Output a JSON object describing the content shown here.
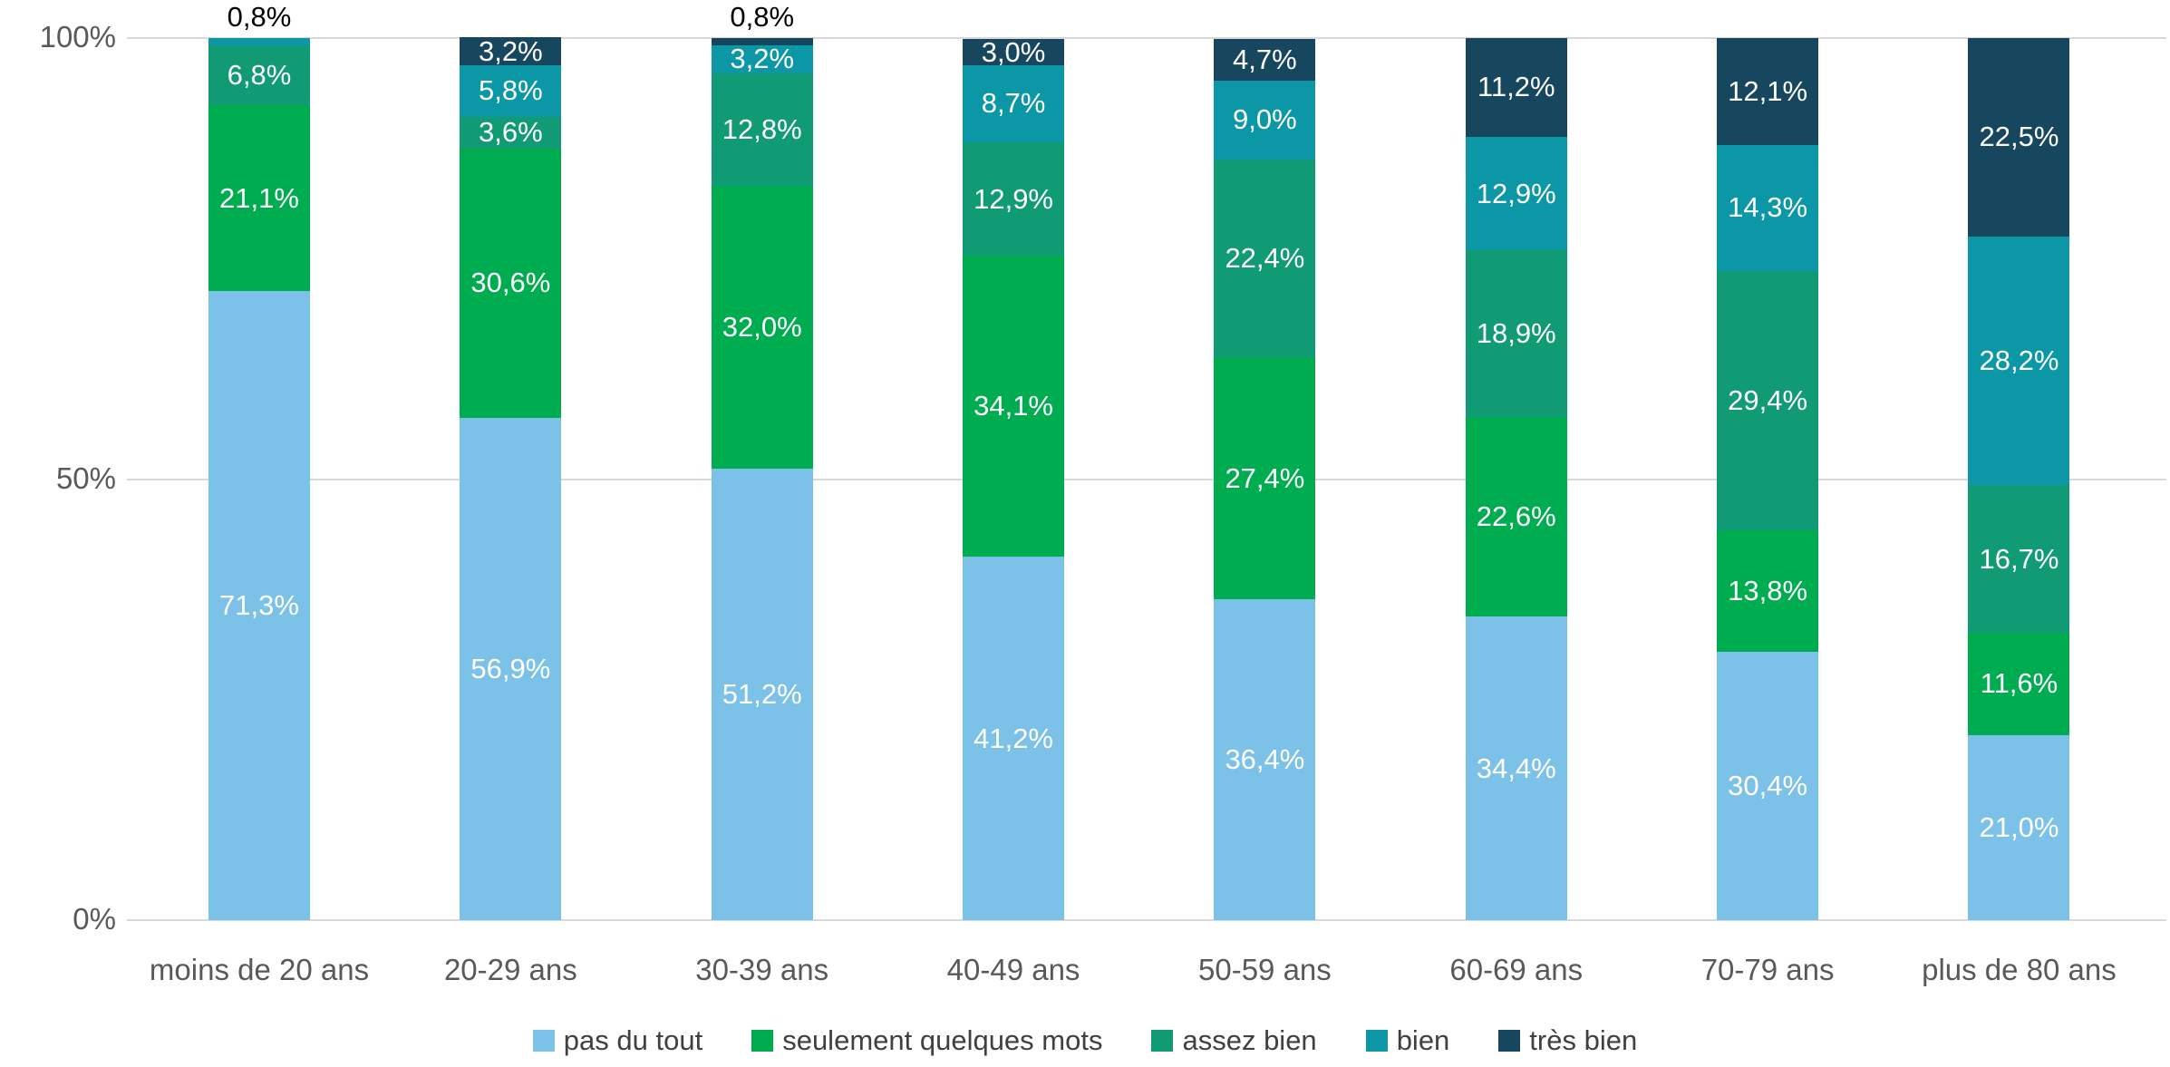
{
  "chart_data": {
    "type": "bar",
    "stacked": true,
    "percent_stacked": true,
    "title": "",
    "xlabel": "",
    "ylabel": "",
    "ylim": [
      0,
      100
    ],
    "grid": "horizontal",
    "legend_position": "bottom",
    "y_ticks": [
      {
        "label": "0%",
        "value": 0
      },
      {
        "label": "50%",
        "value": 50
      },
      {
        "label": "100%",
        "value": 100
      }
    ],
    "categories": [
      "moins de 20 ans",
      "20-29 ans",
      "30-39 ans",
      "40-49 ans",
      "50-59 ans",
      "60-69 ans",
      "70-79 ans",
      "plus de 80 ans"
    ],
    "series": [
      {
        "name": "pas du tout",
        "color": "#7CC2E8",
        "values": [
          71.3,
          56.9,
          51.2,
          41.2,
          36.4,
          34.4,
          30.4,
          21.0
        ],
        "labels": [
          "71,3%",
          "56,9%",
          "51,2%",
          "41,2%",
          "36,4%",
          "34,4%",
          "30,4%",
          "21,0%"
        ],
        "outside_label_indexes": []
      },
      {
        "name": "seulement quelques mots",
        "color": "#00AC50",
        "values": [
          21.1,
          30.6,
          32.0,
          34.1,
          27.4,
          22.6,
          13.8,
          11.6
        ],
        "labels": [
          "21,1%",
          "30,6%",
          "32,0%",
          "34,1%",
          "27,4%",
          "22,6%",
          "13,8%",
          "11,6%"
        ],
        "outside_label_indexes": []
      },
      {
        "name": "assez bien",
        "color": "#119B74",
        "values": [
          6.8,
          3.6,
          12.8,
          12.9,
          22.4,
          18.9,
          29.4,
          16.7
        ],
        "labels": [
          "6,8%",
          "3,6%",
          "12,8%",
          "12,9%",
          "22,4%",
          "18,9%",
          "29,4%",
          "16,7%"
        ],
        "outside_label_indexes": []
      },
      {
        "name": "bien",
        "color": "#0B97A6",
        "values": [
          0.8,
          5.8,
          3.2,
          8.7,
          9.0,
          12.9,
          14.3,
          28.2
        ],
        "labels": [
          "0,8%",
          "5,8%",
          "3,2%",
          "8,7%",
          "9,0%",
          "12,9%",
          "14,3%",
          "28,2%"
        ],
        "outside_label_indexes": [
          0
        ]
      },
      {
        "name": "très bien",
        "color": "#17475E",
        "values": [
          0,
          3.2,
          0.8,
          3.0,
          4.7,
          11.2,
          12.1,
          22.5
        ],
        "labels": [
          "",
          "3,2%",
          "0,8%",
          "3,0%",
          "4,7%",
          "11,2%",
          "12,1%",
          "22,5%"
        ],
        "outside_label_indexes": [
          2
        ]
      }
    ]
  }
}
